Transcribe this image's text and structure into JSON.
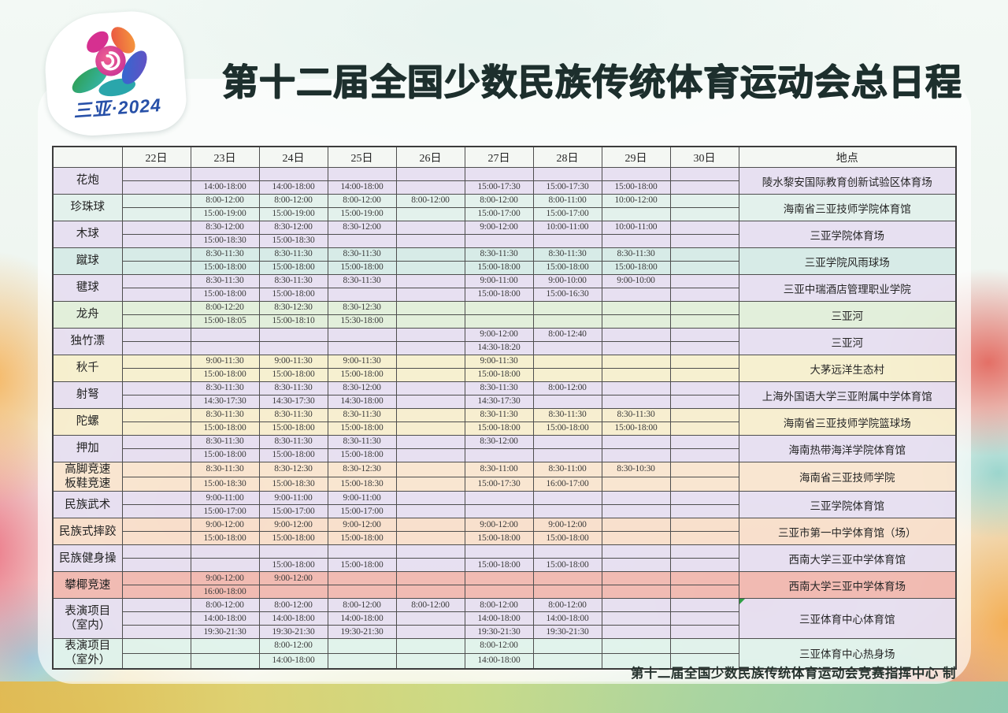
{
  "logo": {
    "caption": "三亚·2024"
  },
  "title": "第十二届全国少数民族传统体育运动会总日程",
  "footer": "第十二届全国少数民族传统体育运动会竞赛指挥中心 制",
  "colors": {
    "lavender": "rgba(228,220,239,0.88)",
    "mint": "rgba(223,239,233,0.88)",
    "teal": "rgba(211,233,228,0.9)",
    "green": "rgba(223,237,215,0.9)",
    "yellow": "rgba(245,238,203,0.9)",
    "cream": "rgba(246,236,202,0.88)",
    "peach": "rgba(248,227,203,0.88)",
    "salmon": "rgba(247,220,198,0.88)",
    "pink": "rgba(240,181,173,0.92)",
    "mint2": "rgba(222,242,234,0.9)",
    "header": "rgba(242,246,241,0.85)",
    "logo_text_blue": "#2750a8",
    "title_ink": "#1d2f2d"
  },
  "schedule": {
    "headers": [
      "",
      "22日",
      "23日",
      "24日",
      "25日",
      "26日",
      "27日",
      "28日",
      "29日",
      "30日",
      "地点"
    ],
    "rows": [
      {
        "name": "花炮",
        "color": "lavender",
        "location": "陵水黎安国际教育创新试验区体育场",
        "slots": [
          [
            "",
            "",
            "",
            "",
            "",
            "",
            "",
            "",
            ""
          ],
          [
            "",
            "14:00-18:00",
            "14:00-18:00",
            "14:00-18:00",
            "",
            "15:00-17:30",
            "15:00-17:30",
            "15:00-18:00",
            ""
          ]
        ]
      },
      {
        "name": "珍珠球",
        "color": "mint",
        "location": "海南省三亚技师学院体育馆",
        "slots": [
          [
            "",
            "8:00-12:00",
            "8:00-12:00",
            "8:00-12:00",
            "8:00-12:00",
            "8:00-12:00",
            "8:00-11:00",
            "10:00-12:00",
            ""
          ],
          [
            "",
            "15:00-19:00",
            "15:00-19:00",
            "15:00-19:00",
            "",
            "15:00-17:00",
            "15:00-17:00",
            "",
            ""
          ]
        ]
      },
      {
        "name": "木球",
        "color": "lavender",
        "location": "三亚学院体育场",
        "slots": [
          [
            "",
            "8:30-12:00",
            "8:30-12:00",
            "8:30-12:00",
            "",
            "9:00-12:00",
            "10:00-11:00",
            "10:00-11:00",
            ""
          ],
          [
            "",
            "15:00-18:30",
            "15:00-18:30",
            "",
            "",
            "",
            "",
            "",
            ""
          ]
        ]
      },
      {
        "name": "蹴球",
        "color": "teal",
        "location": "三亚学院风雨球场",
        "slots": [
          [
            "",
            "8:30-11:30",
            "8:30-11:30",
            "8:30-11:30",
            "",
            "8:30-11:30",
            "8:30-11:30",
            "8:30-11:30",
            ""
          ],
          [
            "",
            "15:00-18:00",
            "15:00-18:00",
            "15:00-18:00",
            "",
            "15:00-18:00",
            "15:00-18:00",
            "15:00-18:00",
            ""
          ]
        ]
      },
      {
        "name": "毽球",
        "color": "lavender",
        "location": "三亚中瑞酒店管理职业学院",
        "slots": [
          [
            "",
            "8:30-11:30",
            "8:30-11:30",
            "8:30-11:30",
            "",
            "9:00-11:00",
            "9:00-10:00",
            "9:00-10:00",
            ""
          ],
          [
            "",
            "15:00-18:00",
            "15:00-18:00",
            "",
            "",
            "15:00-18:00",
            "15:00-16:30",
            "",
            ""
          ]
        ]
      },
      {
        "name": "龙舟",
        "color": "green",
        "location": "三亚河",
        "slots": [
          [
            "",
            "8:00-12:20",
            "8:30-12:30",
            "8:30-12:30",
            "",
            "",
            "",
            "",
            ""
          ],
          [
            "",
            "15:00-18:05",
            "15:00-18:10",
            "15:30-18:00",
            "",
            "",
            "",
            "",
            ""
          ]
        ]
      },
      {
        "name": "独竹漂",
        "color": "lavender",
        "location": "三亚河",
        "slots": [
          [
            "",
            "",
            "",
            "",
            "",
            "9:00-12:00",
            "8:00-12:40",
            "",
            ""
          ],
          [
            "",
            "",
            "",
            "",
            "",
            "14:30-18:20",
            "",
            "",
            ""
          ]
        ]
      },
      {
        "name": "秋千",
        "color": "yellow",
        "location": "大茅远洋生态村",
        "slots": [
          [
            "",
            "9:00-11:30",
            "9:00-11:30",
            "9:00-11:30",
            "",
            "9:00-11:30",
            "",
            "",
            ""
          ],
          [
            "",
            "15:00-18:00",
            "15:00-18:00",
            "15:00-18:00",
            "",
            "15:00-18:00",
            "",
            "",
            ""
          ]
        ]
      },
      {
        "name": "射弩",
        "color": "lavender",
        "location": "上海外国语大学三亚附属中学体育馆",
        "slots": [
          [
            "",
            "8:30-11:30",
            "8:30-11:30",
            "8:30-12:00",
            "",
            "8:30-11:30",
            "8:00-12:00",
            "",
            ""
          ],
          [
            "",
            "14:30-17:30",
            "14:30-17:30",
            "14:30-18:00",
            "",
            "14:30-17:30",
            "",
            "",
            ""
          ]
        ]
      },
      {
        "name": "陀螺",
        "color": "cream",
        "location": "海南省三亚技师学院篮球场",
        "slots": [
          [
            "",
            "8:30-11:30",
            "8:30-11:30",
            "8:30-11:30",
            "",
            "8:30-11:30",
            "8:30-11:30",
            "8:30-11:30",
            ""
          ],
          [
            "",
            "15:00-18:00",
            "15:00-18:00",
            "15:00-18:00",
            "",
            "15:00-18:00",
            "15:00-18:00",
            "15:00-18:00",
            ""
          ]
        ]
      },
      {
        "name": "押加",
        "color": "lavender",
        "location": "海南热带海洋学院体育馆",
        "slots": [
          [
            "",
            "8:30-11:30",
            "8:30-11:30",
            "8:30-11:30",
            "",
            "8:30-12:00",
            "",
            "",
            ""
          ],
          [
            "",
            "15:00-18:00",
            "15:00-18:00",
            "15:00-18:00",
            "",
            "",
            "",
            "",
            ""
          ]
        ]
      },
      {
        "name": "高脚竞速\n板鞋竞速",
        "color": "peach",
        "location": "海南省三亚技师学院",
        "slots": [
          [
            "",
            "8:30-11:30",
            "8:30-12:30",
            "8:30-12:30",
            "",
            "8:30-11:00",
            "8:30-11:00",
            "8:30-10:30",
            ""
          ],
          [
            "",
            "15:00-18:30",
            "15:00-18:30",
            "15:00-18:30",
            "",
            "15:00-17:30",
            "16:00-17:00",
            "",
            ""
          ]
        ]
      },
      {
        "name": "民族武术",
        "color": "lavender",
        "location": "三亚学院体育馆",
        "slots": [
          [
            "",
            "9:00-11:00",
            "9:00-11:00",
            "9:00-11:00",
            "",
            "",
            "",
            "",
            ""
          ],
          [
            "",
            "15:00-17:00",
            "15:00-17:00",
            "15:00-17:00",
            "",
            "",
            "",
            "",
            ""
          ]
        ]
      },
      {
        "name": "民族式摔跤",
        "color": "salmon",
        "location": "三亚市第一中学体育馆（场）",
        "slots": [
          [
            "",
            "9:00-12:00",
            "9:00-12:00",
            "9:00-12:00",
            "",
            "9:00-12:00",
            "9:00-12:00",
            "",
            ""
          ],
          [
            "",
            "15:00-18:00",
            "15:00-18:00",
            "15:00-18:00",
            "",
            "15:00-18:00",
            "15:00-18:00",
            "",
            ""
          ]
        ]
      },
      {
        "name": "民族健身操",
        "color": "lavender",
        "location": "西南大学三亚中学体育馆",
        "slots": [
          [
            "",
            "",
            "",
            "",
            "",
            "",
            "",
            "",
            ""
          ],
          [
            "",
            "",
            "15:00-18:00",
            "15:00-18:00",
            "",
            "15:00-18:00",
            "15:00-18:00",
            "",
            ""
          ]
        ]
      },
      {
        "name": "攀椰竞速",
        "color": "pink",
        "location": "西南大学三亚中学体育场",
        "slots": [
          [
            "",
            "9:00-12:00",
            "9:00-12:00",
            "",
            "",
            "",
            "",
            "",
            ""
          ],
          [
            "",
            "16:00-18:00",
            "",
            "",
            "",
            "",
            "",
            "",
            ""
          ]
        ]
      },
      {
        "name": "表演项目\n（室内）",
        "color": "lavender",
        "location": "三亚体育中心体育馆",
        "marker": true,
        "slots": [
          [
            "",
            "8:00-12:00",
            "8:00-12:00",
            "8:00-12:00",
            "8:00-12:00",
            "8:00-12:00",
            "8:00-12:00",
            "",
            ""
          ],
          [
            "",
            "14:00-18:00",
            "14:00-18:00",
            "14:00-18:00",
            "",
            "14:00-18:00",
            "14:00-18:00",
            "",
            ""
          ],
          [
            "",
            "19:30-21:30",
            "19:30-21:30",
            "19:30-21:30",
            "",
            "19:30-21:30",
            "19:30-21:30",
            "",
            ""
          ]
        ]
      },
      {
        "name": "表演项目\n（室外）",
        "color": "mint2",
        "location": "三亚体育中心热身场",
        "slots": [
          [
            "",
            "",
            "8:00-12:00",
            "",
            "",
            "8:00-12:00",
            "",
            "",
            ""
          ],
          [
            "",
            "",
            "14:00-18:00",
            "",
            "",
            "14:00-18:00",
            "",
            "",
            ""
          ]
        ]
      }
    ]
  }
}
